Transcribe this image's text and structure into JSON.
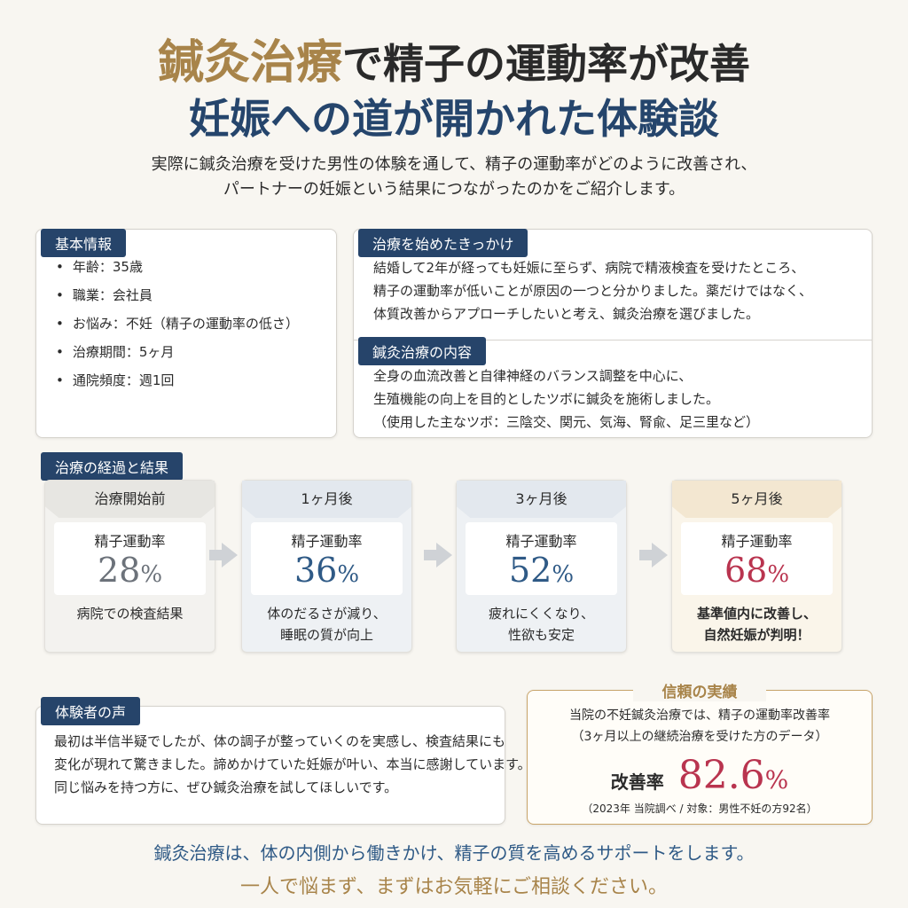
{
  "header": {
    "title_accent": "鍼灸治療",
    "title_rest": "で精子の運動率が改善",
    "subtitle": "妊娠への道が開かれた体験談",
    "intro": [
      "実際に鍼灸治療を受けた男性の体験を通して、精子の運動率がどのように改善され、",
      "パートナーの妊娠という結果につながったのかをご紹介します。"
    ]
  },
  "basic_info": {
    "title": "基本情報",
    "items": [
      "年齢：35歳",
      "職業：会社員",
      "お悩み：不妊（精子の運動率の低さ）",
      "治療期間：5ヶ月",
      "通院頻度：週1回"
    ]
  },
  "trigger": {
    "title": "治療を始めたきっかけ",
    "lines": [
      "結婚して2年が経っても妊娠に至らず、病院で精液検査を受けたところ、",
      "精子の運動率が低いことが原因の一つと分かりました。薬だけではなく、",
      "体質改善からアプローチしたいと考え、鍼灸治療を選びました。"
    ]
  },
  "treatment": {
    "title": "鍼灸治療の内容",
    "lines": [
      "全身の血流改善と自律神経のバランス調整を中心に、",
      "生殖機能の向上を目的としたツボに鍼灸を施術しました。",
      "（使用した主なツボ：三陰交、関元、気海、腎兪、足三里など）"
    ]
  },
  "progress": {
    "title": "治療の経過と結果",
    "steps": [
      {
        "period": "治療開始前",
        "label": "精子運動率",
        "value": "28",
        "unit": "%",
        "note": [
          "病院での検査結果"
        ]
      },
      {
        "period": "1ヶ月後",
        "label": "精子運動率",
        "value": "36",
        "unit": "%",
        "note": [
          "体のだるさが減り、",
          "睡眠の質が向上"
        ]
      },
      {
        "period": "3ヶ月後",
        "label": "精子運動率",
        "value": "52",
        "unit": "%",
        "note": [
          "疲れにくくなり、",
          "性欲も安定"
        ]
      },
      {
        "period": "5ヶ月後",
        "label": "精子運動率",
        "value": "68",
        "unit": "%",
        "note": [
          "基準値内に改善し、",
          "自然妊娠が判明！"
        ]
      }
    ]
  },
  "voice": {
    "title": "体験者の声",
    "lines": [
      "最初は半信半疑でしたが、体の調子が整っていくのを実感し、検査結果にも",
      "変化が現れて驚きました。諦めかけていた妊娠が叶い、本当に感謝しています。",
      "同じ悩みを持つ方に、ぜひ鍼灸治療を試してほしいです。"
    ]
  },
  "trust": {
    "title": "信頼の実績",
    "lines": [
      "当院の不妊鍼灸治療では、精子の運動率改善率",
      "（3ヶ月以上の継続治療を受けた方のデータ）"
    ],
    "rate_label": "改善率",
    "rate_value": "82.6",
    "rate_unit": "%",
    "note": "（2023年 当院調べ / 対象：男性不妊の方92名）"
  },
  "footer": {
    "lines": [
      "鍼灸治療は、体の内側から働きかけ、精子の質を高めるサポートをします。",
      "一人で悩まず、まずはお気軽にご相談ください。"
    ]
  }
}
